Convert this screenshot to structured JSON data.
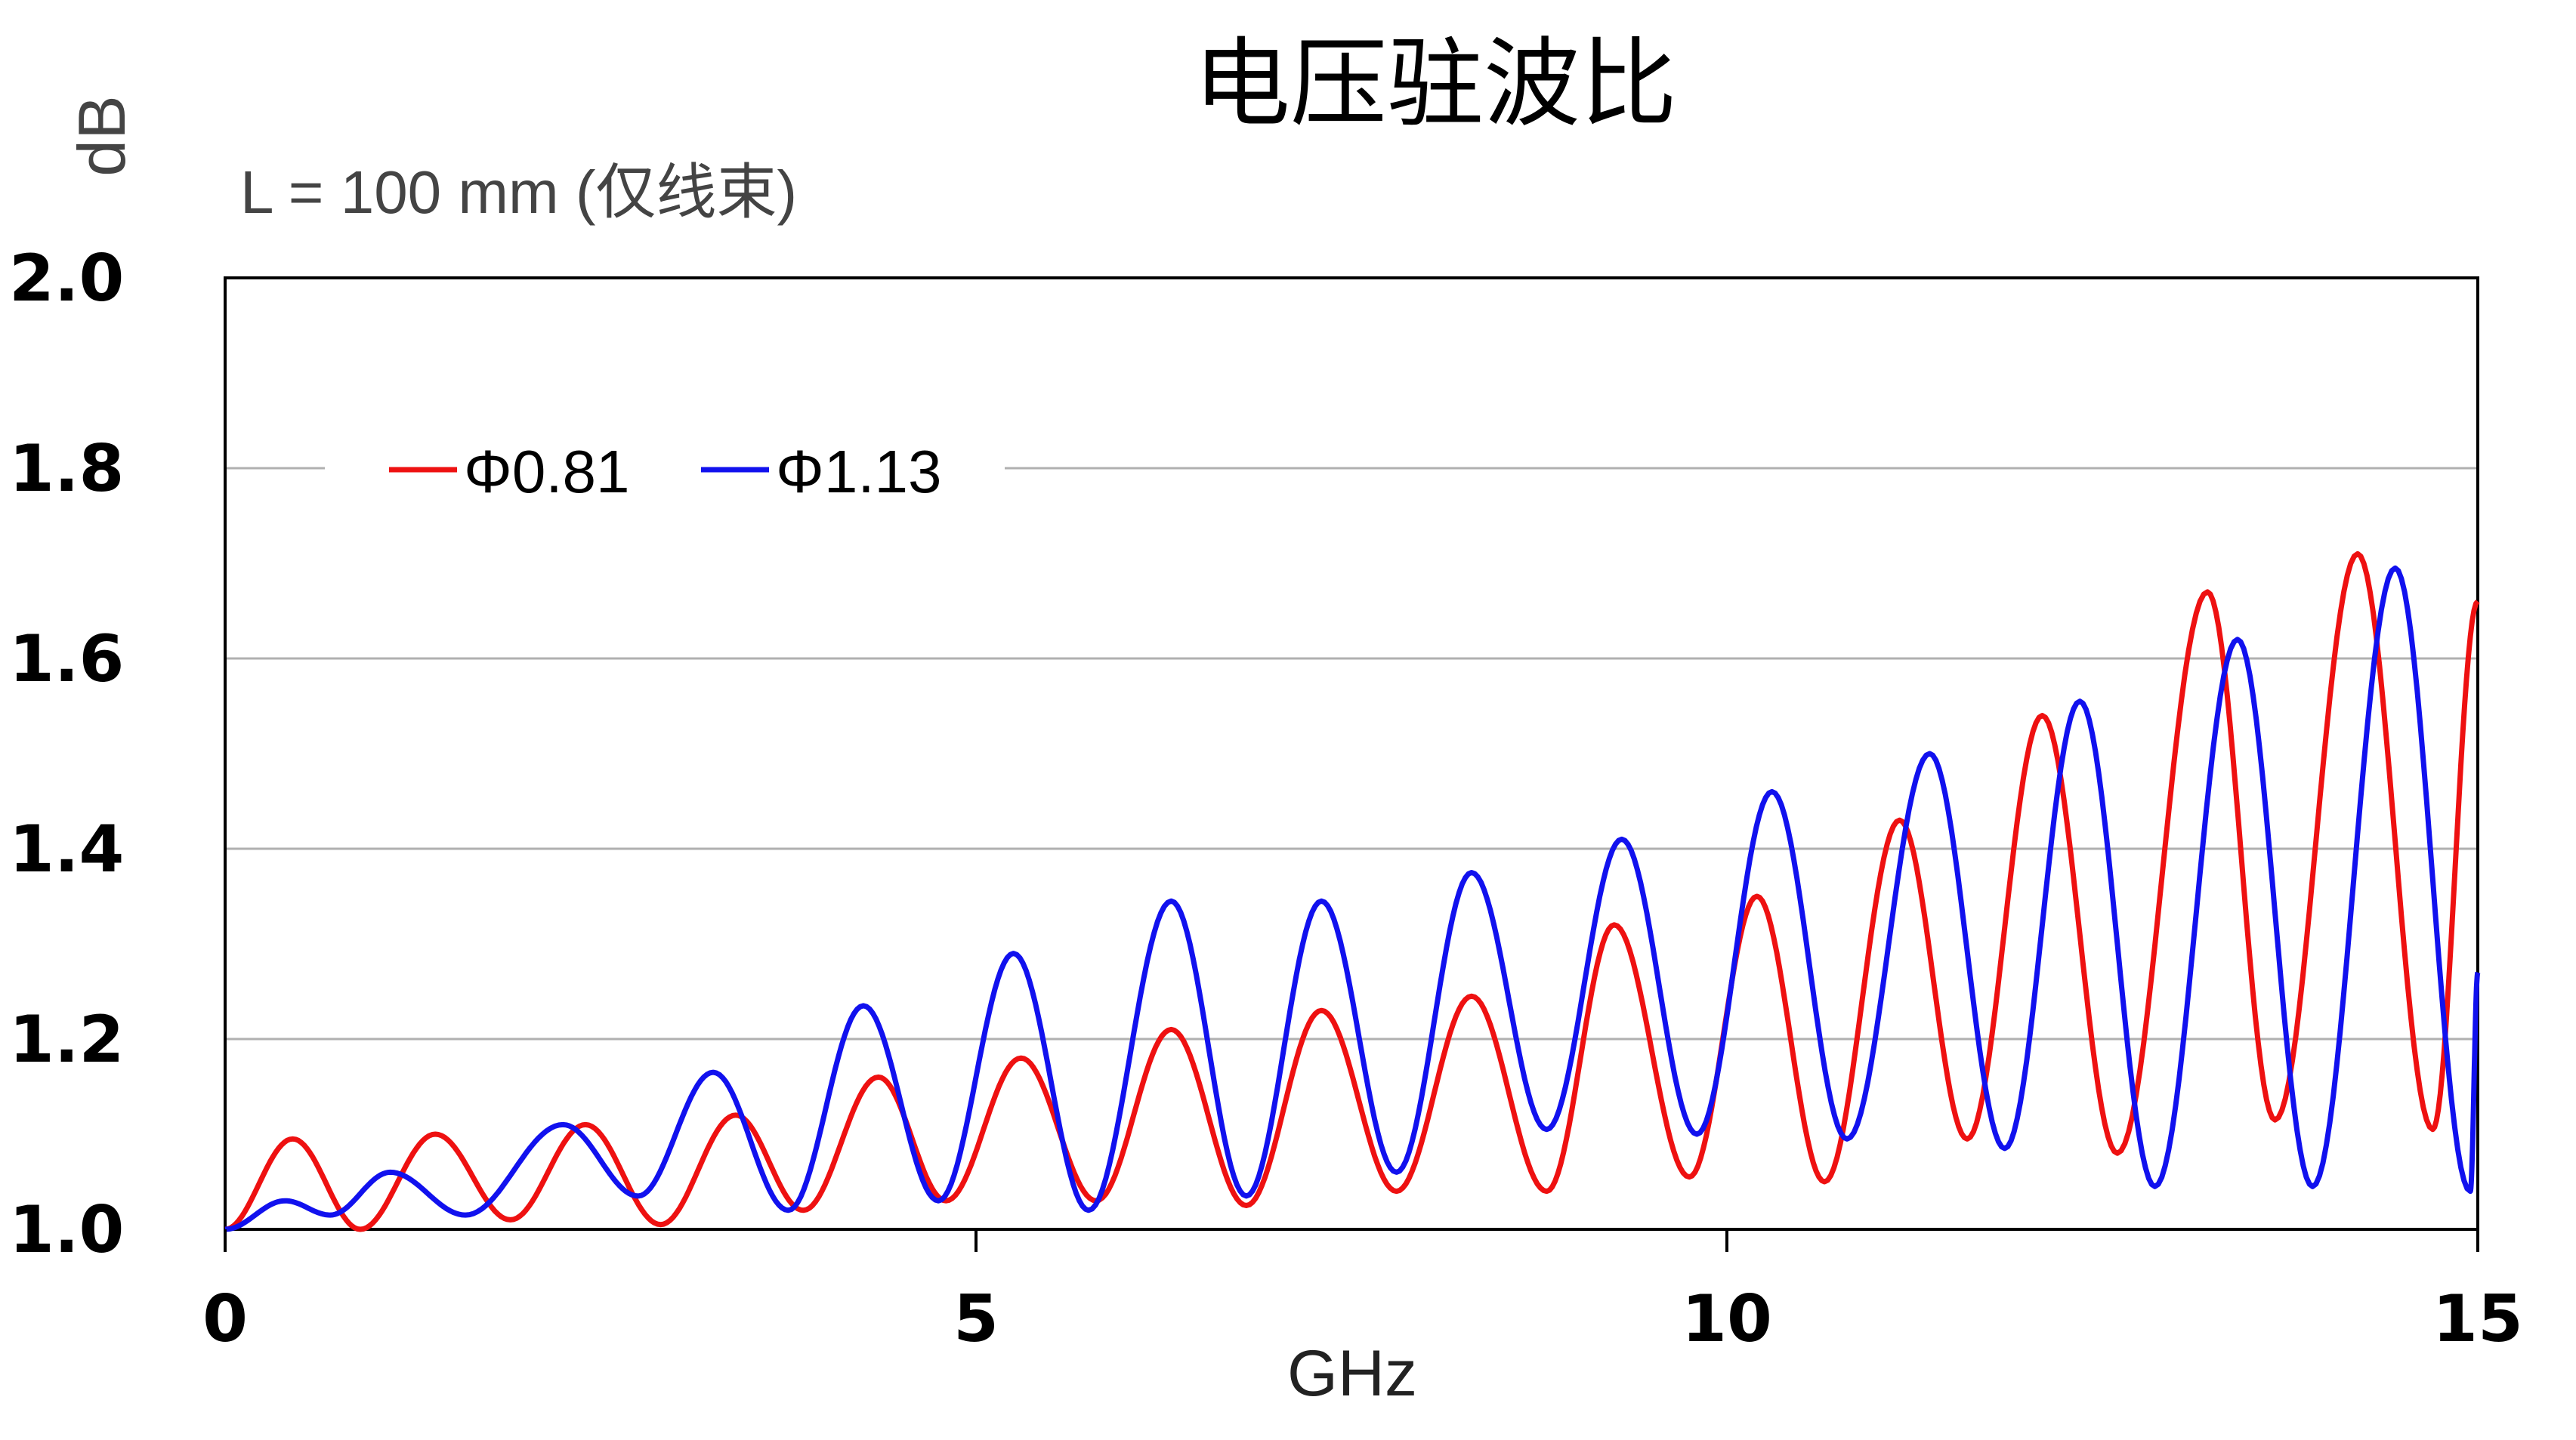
{
  "chart_data": {
    "type": "line",
    "title": "电压驻波比",
    "subtitle": "L = 100 mm (仅线束)",
    "xlabel": "GHz",
    "ylabel": "dB",
    "xlim": [
      0,
      15
    ],
    "ylim": [
      1.0,
      2.0
    ],
    "x_ticks": [
      "0",
      "5",
      "10",
      "15"
    ],
    "y_ticks": [
      "1.0",
      "1.2",
      "1.4",
      "1.6",
      "1.8",
      "2.0"
    ],
    "grid": "horizontal",
    "legend_position": "top-left",
    "series": [
      {
        "name": "Φ0.81",
        "color": "#ee1111",
        "points": [
          [
            0.0,
            1.0
          ],
          [
            0.45,
            1.095
          ],
          [
            0.9,
            1.0
          ],
          [
            1.4,
            1.1
          ],
          [
            1.9,
            1.01
          ],
          [
            2.4,
            1.11
          ],
          [
            2.9,
            1.005
          ],
          [
            3.4,
            1.12
          ],
          [
            3.85,
            1.02
          ],
          [
            4.35,
            1.16
          ],
          [
            4.8,
            1.03
          ],
          [
            5.3,
            1.18
          ],
          [
            5.8,
            1.03
          ],
          [
            6.3,
            1.21
          ],
          [
            6.8,
            1.025
          ],
          [
            7.3,
            1.23
          ],
          [
            7.8,
            1.04
          ],
          [
            8.3,
            1.245
          ],
          [
            8.8,
            1.04
          ],
          [
            9.25,
            1.32
          ],
          [
            9.75,
            1.055
          ],
          [
            10.2,
            1.35
          ],
          [
            10.65,
            1.05
          ],
          [
            11.15,
            1.43
          ],
          [
            11.6,
            1.095
          ],
          [
            12.1,
            1.54
          ],
          [
            12.6,
            1.08
          ],
          [
            13.2,
            1.67
          ],
          [
            13.65,
            1.115
          ],
          [
            14.2,
            1.71
          ],
          [
            14.7,
            1.105
          ],
          [
            15.0,
            1.66
          ]
        ]
      },
      {
        "name": "Φ1.13",
        "color": "#1111ee",
        "points": [
          [
            0.0,
            1.0
          ],
          [
            0.4,
            1.03
          ],
          [
            0.7,
            1.015
          ],
          [
            1.1,
            1.06
          ],
          [
            1.6,
            1.015
          ],
          [
            2.25,
            1.11
          ],
          [
            2.75,
            1.035
          ],
          [
            3.25,
            1.165
          ],
          [
            3.75,
            1.02
          ],
          [
            4.25,
            1.235
          ],
          [
            4.75,
            1.03
          ],
          [
            5.25,
            1.29
          ],
          [
            5.75,
            1.02
          ],
          [
            6.3,
            1.345
          ],
          [
            6.8,
            1.035
          ],
          [
            7.3,
            1.345
          ],
          [
            7.8,
            1.06
          ],
          [
            8.3,
            1.375
          ],
          [
            8.8,
            1.105
          ],
          [
            9.3,
            1.41
          ],
          [
            9.8,
            1.1
          ],
          [
            10.3,
            1.46
          ],
          [
            10.8,
            1.095
          ],
          [
            11.35,
            1.5
          ],
          [
            11.85,
            1.085
          ],
          [
            12.35,
            1.555
          ],
          [
            12.85,
            1.045
          ],
          [
            13.4,
            1.62
          ],
          [
            13.9,
            1.045
          ],
          [
            14.45,
            1.695
          ],
          [
            14.95,
            1.04
          ],
          [
            15.0,
            1.27
          ]
        ]
      }
    ]
  }
}
